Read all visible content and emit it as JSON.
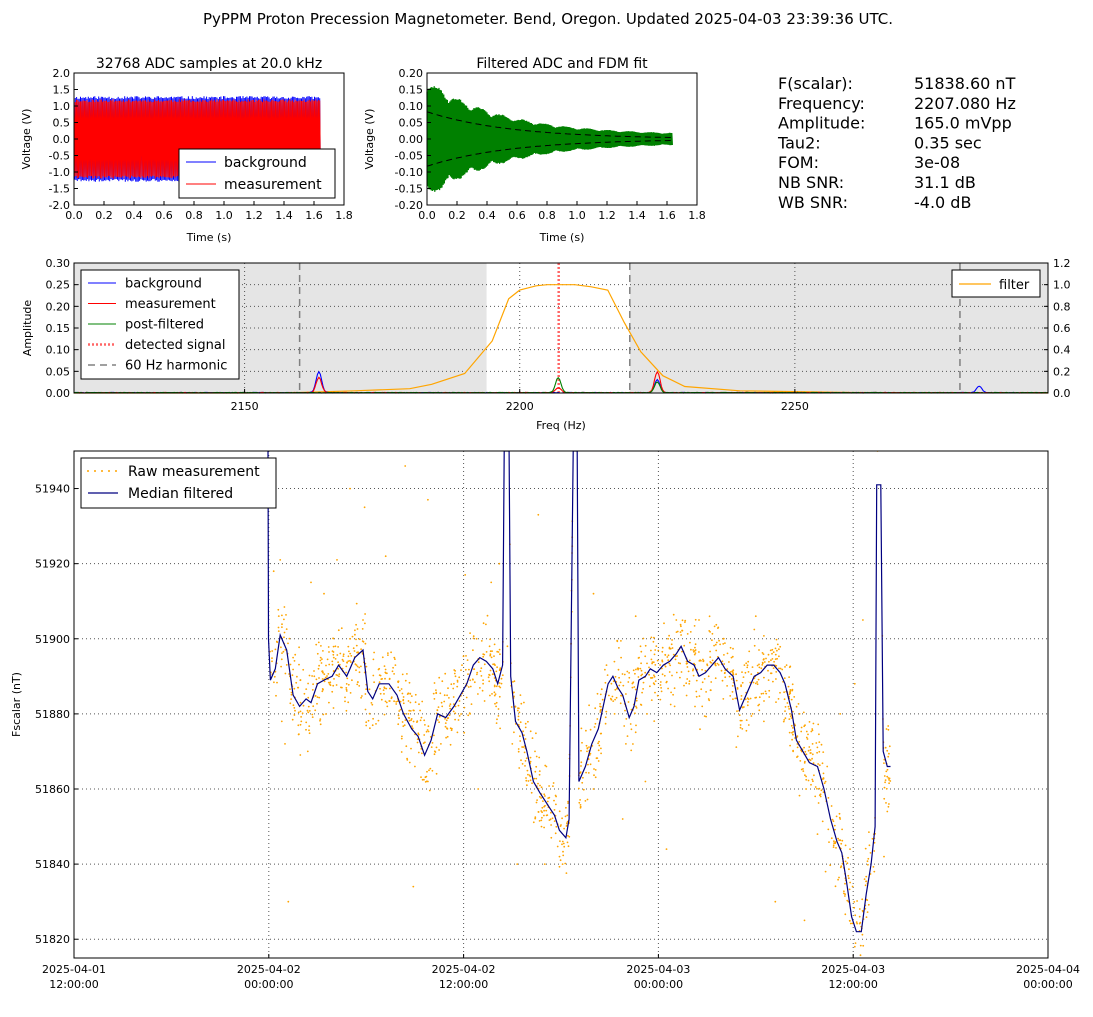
{
  "page_title": "PyPPM Proton Precession Magnetometer. Bend, Oregon. Updated 2025-04-03 23:39:36 UTC.",
  "info_panel": [
    {
      "label": "F(scalar):",
      "value": "51838.60 nT"
    },
    {
      "label": "Frequency:",
      "value": "2207.080 Hz"
    },
    {
      "label": "Amplitude:",
      "value": "165.0 mVpp"
    },
    {
      "label": "Tau2:",
      "value": "0.35 sec"
    },
    {
      "label": "FOM:",
      "value": "3e-08"
    },
    {
      "label": "NB SNR:",
      "value": "31.1 dB"
    },
    {
      "label": "WB SNR:",
      "value": "-4.0 dB"
    }
  ],
  "colors": {
    "background": "#0000ff",
    "measurement": "#ff0000",
    "post_filtered": "#008000",
    "detected": "#ff6666",
    "harmonic": "#808080",
    "filter": "#ffa500",
    "raw": "#ffa500",
    "median": "#000080",
    "grey_band": "#e5e5e5"
  },
  "chart_data": [
    {
      "type": "line",
      "title": "32768 ADC samples at 20.0 kHz",
      "xlabel": "Time (s)",
      "ylabel": "Voltage (V)",
      "xlim": [
        0.0,
        1.8
      ],
      "ylim": [
        -2.0,
        2.0
      ],
      "x_ticks": [
        "0.0",
        "0.2",
        "0.4",
        "0.6",
        "0.8",
        "1.0",
        "1.2",
        "1.4",
        "1.6",
        "1.8"
      ],
      "y_ticks": [
        "2.0",
        "1.5",
        "1.0",
        "0.5",
        "0.0",
        "-0.5",
        "-1.0",
        "-1.5",
        "-2.0"
      ],
      "sample_duration": 1.64,
      "series": [
        {
          "name": "background",
          "amplitude": 1.3
        },
        {
          "name": "measurement",
          "amplitude": 1.2
        }
      ],
      "legend": "lower-right"
    },
    {
      "type": "line",
      "title": "Filtered ADC and FDM fit",
      "xlabel": "Time (s)",
      "ylabel": "Voltage (V)",
      "xlim": [
        0.0,
        1.8
      ],
      "ylim": [
        -0.2,
        0.2
      ],
      "x_ticks": [
        "0.0",
        "0.2",
        "0.4",
        "0.6",
        "0.8",
        "1.0",
        "1.2",
        "1.4",
        "1.6",
        "1.8"
      ],
      "y_ticks": [
        "0.20",
        "0.15",
        "0.10",
        "0.05",
        "0.00",
        "-0.05",
        "-0.10",
        "-0.15",
        "-0.20"
      ],
      "sample_duration": 1.64,
      "fit_amplitude": 0.0825,
      "tau2": 0.35
    },
    {
      "type": "line",
      "xlabel": "Freq (Hz)",
      "ylabel": "Amplitude",
      "xlim": [
        2119,
        2296
      ],
      "ylim": [
        0.0,
        0.3
      ],
      "y2lim": [
        0.0,
        1.2
      ],
      "x_ticks": [
        "2150",
        "2200",
        "2250"
      ],
      "y_ticks": [
        "0.30",
        "0.25",
        "0.20",
        "0.15",
        "0.10",
        "0.05",
        "0.00"
      ],
      "y2_ticks": [
        "1.2",
        "1.0",
        "0.8",
        "0.6",
        "0.4",
        "0.2",
        "0.0"
      ],
      "passband": [
        2194,
        2220
      ],
      "harmonics_60hz": [
        2160,
        2220,
        2280
      ],
      "detected_signal": 2207.08,
      "legend_left": [
        "background",
        "measurement",
        "post-filtered",
        "detected signal",
        "60 Hz harmonic"
      ],
      "legend_right": [
        "filter"
      ],
      "filter_curve": [
        [
          2119,
          0
        ],
        [
          2150,
          0
        ],
        [
          2160,
          0.005
        ],
        [
          2170,
          0.02
        ],
        [
          2180,
          0.04
        ],
        [
          2184,
          0.08
        ],
        [
          2190,
          0.18
        ],
        [
          2195,
          0.48
        ],
        [
          2198,
          0.87
        ],
        [
          2200,
          0.95
        ],
        [
          2203,
          0.99
        ],
        [
          2205,
          1.0
        ],
        [
          2210,
          1.0
        ],
        [
          2213,
          0.98
        ],
        [
          2216,
          0.95
        ],
        [
          2219,
          0.65
        ],
        [
          2222,
          0.38
        ],
        [
          2226,
          0.16
        ],
        [
          2230,
          0.06
        ],
        [
          2240,
          0.02
        ],
        [
          2260,
          0.005
        ],
        [
          2296,
          0
        ]
      ],
      "background_peaks": [
        [
          2163.5,
          0.048
        ],
        [
          2225,
          0.03
        ],
        [
          2283.5,
          0.015
        ]
      ],
      "measurement_peaks": [
        [
          2163.5,
          0.035
        ],
        [
          2225,
          0.048
        ],
        [
          2207,
          0.012
        ]
      ],
      "postfiltered_peaks": [
        [
          2207,
          0.035
        ],
        [
          2225,
          0.025
        ]
      ]
    },
    {
      "type": "scatter",
      "xlabel": "",
      "ylabel": "Fscalar (nT)",
      "xlim": [
        0,
        60
      ],
      "ylim": [
        51815,
        51950
      ],
      "x_ticks": [
        {
          "x": 0,
          "l1": "2025-04-01",
          "l2": "12:00:00"
        },
        {
          "x": 12,
          "l1": "2025-04-02",
          "l2": "00:00:00"
        },
        {
          "x": 24,
          "l1": "2025-04-02",
          "l2": "12:00:00"
        },
        {
          "x": 36,
          "l1": "2025-04-03",
          "l2": "00:00:00"
        },
        {
          "x": 48,
          "l1": "2025-04-03",
          "l2": "12:00:00"
        },
        {
          "x": 60,
          "l1": "2025-04-04",
          "l2": "00:00:00"
        }
      ],
      "y_ticks": [
        51820,
        51840,
        51860,
        51880,
        51900,
        51920,
        51940
      ],
      "series": [
        {
          "name": "Raw measurement",
          "style": "points"
        },
        {
          "name": "Median filtered",
          "style": "line"
        }
      ],
      "median_filtered": [
        [
          11.95,
          51950
        ],
        [
          11.98,
          51900
        ],
        [
          12.1,
          51889
        ],
        [
          12.4,
          51892
        ],
        [
          12.7,
          51901
        ],
        [
          13.1,
          51897
        ],
        [
          13.5,
          51885
        ],
        [
          13.9,
          51882
        ],
        [
          14.3,
          51884
        ],
        [
          14.6,
          51883
        ],
        [
          15.0,
          51888
        ],
        [
          15.4,
          51889
        ],
        [
          15.9,
          51890
        ],
        [
          16.3,
          51893
        ],
        [
          16.8,
          51890
        ],
        [
          17.3,
          51895
        ],
        [
          17.8,
          51897
        ],
        [
          18.1,
          51886
        ],
        [
          18.4,
          51884
        ],
        [
          18.8,
          51888
        ],
        [
          19.4,
          51888
        ],
        [
          19.9,
          51885
        ],
        [
          20.3,
          51880
        ],
        [
          20.8,
          51876
        ],
        [
          21.2,
          51874
        ],
        [
          21.6,
          51869
        ],
        [
          22.0,
          51873
        ],
        [
          22.4,
          51880
        ],
        [
          22.9,
          51879
        ],
        [
          23.4,
          51882
        ],
        [
          23.8,
          51885
        ],
        [
          24.2,
          51888
        ],
        [
          24.6,
          51893
        ],
        [
          25.0,
          51895
        ],
        [
          25.4,
          51894
        ],
        [
          25.8,
          51892
        ],
        [
          26.1,
          51888
        ],
        [
          26.4,
          51893
        ],
        [
          26.5,
          51950
        ],
        [
          26.8,
          51950
        ],
        [
          26.9,
          51890
        ],
        [
          27.2,
          51878
        ],
        [
          27.6,
          51875
        ],
        [
          27.9,
          51870
        ],
        [
          28.3,
          51862
        ],
        [
          28.7,
          51859
        ],
        [
          29.0,
          51857
        ],
        [
          29.3,
          51855
        ],
        [
          29.6,
          51853
        ],
        [
          29.9,
          51849
        ],
        [
          30.3,
          51847
        ],
        [
          30.5,
          51852
        ],
        [
          30.75,
          51950
        ],
        [
          31.0,
          51950
        ],
        [
          31.1,
          51862
        ],
        [
          31.5,
          51866
        ],
        [
          31.9,
          51872
        ],
        [
          32.3,
          51876
        ],
        [
          32.6,
          51882
        ],
        [
          32.9,
          51888
        ],
        [
          33.2,
          51890
        ],
        [
          33.5,
          51887
        ],
        [
          33.8,
          51885
        ],
        [
          34.2,
          51879
        ],
        [
          34.5,
          51882
        ],
        [
          34.8,
          51889
        ],
        [
          35.2,
          51890
        ],
        [
          35.5,
          51892
        ],
        [
          35.9,
          51891
        ],
        [
          36.3,
          51893
        ],
        [
          36.7,
          51894
        ],
        [
          37.1,
          51896
        ],
        [
          37.4,
          51898
        ],
        [
          37.8,
          51894
        ],
        [
          38.2,
          51893
        ],
        [
          38.5,
          51890
        ],
        [
          38.9,
          51891
        ],
        [
          39.3,
          51893
        ],
        [
          39.7,
          51895
        ],
        [
          40.1,
          51892
        ],
        [
          40.6,
          51890
        ],
        [
          41.0,
          51881
        ],
        [
          41.3,
          51884
        ],
        [
          41.6,
          51887
        ],
        [
          41.9,
          51890
        ],
        [
          42.3,
          51891
        ],
        [
          42.7,
          51893
        ],
        [
          43.1,
          51893
        ],
        [
          43.5,
          51891
        ],
        [
          43.8,
          51888
        ],
        [
          44.2,
          51881
        ],
        [
          44.5,
          51873
        ],
        [
          44.9,
          51870
        ],
        [
          45.3,
          51867
        ],
        [
          45.8,
          51866
        ],
        [
          46.2,
          51860
        ],
        [
          46.6,
          51852
        ],
        [
          47.0,
          51846
        ],
        [
          47.3,
          51843
        ],
        [
          47.6,
          51835
        ],
        [
          47.9,
          51826
        ],
        [
          48.2,
          51822
        ],
        [
          48.5,
          51822
        ],
        [
          48.8,
          51832
        ],
        [
          49.1,
          51840
        ],
        [
          49.35,
          51850
        ],
        [
          49.45,
          51941
        ],
        [
          49.7,
          51941
        ],
        [
          49.85,
          51870
        ],
        [
          50.1,
          51866
        ],
        [
          50.3,
          51866
        ]
      ],
      "raw_samples": [
        [
          12.2,
          51894
        ],
        [
          12.6,
          51903
        ],
        [
          12.8,
          51878
        ],
        [
          13.0,
          51872
        ],
        [
          13.3,
          51890
        ],
        [
          13.5,
          51895
        ],
        [
          14.0,
          51878
        ],
        [
          14.4,
          51870
        ],
        [
          14.8,
          51890
        ],
        [
          15.2,
          51895
        ],
        [
          15.7,
          51883
        ],
        [
          16.1,
          51898
        ],
        [
          16.5,
          51887
        ],
        [
          17.0,
          51900
        ],
        [
          17.4,
          51893
        ],
        [
          17.8,
          51905
        ],
        [
          18.4,
          51877
        ],
        [
          18.8,
          51892
        ],
        [
          19.3,
          51882
        ],
        [
          19.8,
          51893
        ],
        [
          20.2,
          51874
        ],
        [
          20.6,
          51880
        ],
        [
          21.0,
          51866
        ],
        [
          21.4,
          51879
        ],
        [
          21.8,
          51862
        ],
        [
          22.2,
          51884
        ],
        [
          22.6,
          51872
        ],
        [
          23.0,
          51876
        ],
        [
          23.4,
          51888
        ],
        [
          23.9,
          51893
        ],
        [
          24.4,
          51880
        ],
        [
          24.8,
          51900
        ],
        [
          25.2,
          51889
        ],
        [
          25.6,
          51898
        ],
        [
          26.0,
          51882
        ],
        [
          26.7,
          51898
        ],
        [
          27.0,
          51872
        ],
        [
          27.5,
          51885
        ],
        [
          27.9,
          51861
        ],
        [
          28.4,
          51870
        ],
        [
          28.8,
          51850
        ],
        [
          29.1,
          51866
        ],
        [
          29.4,
          51847
        ],
        [
          29.7,
          51858
        ],
        [
          30.1,
          51840
        ],
        [
          30.3,
          51855
        ],
        [
          31.2,
          51855
        ],
        [
          31.6,
          51870
        ],
        [
          32.0,
          51860
        ],
        [
          32.4,
          51882
        ],
        [
          32.8,
          51893
        ],
        [
          33.3,
          51880
        ],
        [
          33.7,
          51895
        ],
        [
          34.0,
          51872
        ],
        [
          34.4,
          51887
        ],
        [
          34.9,
          51898
        ],
        [
          35.3,
          51880
        ],
        [
          35.8,
          51897
        ],
        [
          36.2,
          51886
        ],
        [
          36.6,
          51900
        ],
        [
          37.0,
          51882
        ],
        [
          37.4,
          51901
        ],
        [
          37.9,
          51888
        ],
        [
          38.3,
          51897
        ],
        [
          38.7,
          51882
        ],
        [
          39.1,
          51890
        ],
        [
          39.6,
          51899
        ],
        [
          40.0,
          51884
        ],
        [
          40.5,
          51895
        ],
        [
          40.9,
          51874
        ],
        [
          41.3,
          51893
        ],
        [
          41.8,
          51880
        ],
        [
          42.2,
          51897
        ],
        [
          42.6,
          51886
        ],
        [
          43.0,
          51896
        ],
        [
          43.4,
          51884
        ],
        [
          43.9,
          51893
        ],
        [
          44.3,
          51870
        ],
        [
          44.7,
          51880
        ],
        [
          45.1,
          51860
        ],
        [
          45.5,
          51872
        ],
        [
          46.0,
          51858
        ],
        [
          46.4,
          51866
        ],
        [
          46.8,
          51845
        ],
        [
          47.2,
          51852
        ],
        [
          47.5,
          51832
        ],
        [
          47.8,
          51844
        ],
        [
          48.1,
          51818
        ],
        [
          48.4,
          51826
        ],
        [
          48.7,
          51836
        ],
        [
          49.0,
          51845
        ],
        [
          49.3,
          51838
        ],
        [
          50.0,
          51871
        ],
        [
          50.2,
          51856
        ]
      ],
      "raw_outliers": [
        [
          12.3,
          51918
        ],
        [
          12.7,
          51921
        ],
        [
          13.2,
          51830
        ],
        [
          14.6,
          51915
        ],
        [
          15.4,
          51912
        ],
        [
          16.2,
          51921
        ],
        [
          17.0,
          51940
        ],
        [
          17.9,
          51935
        ],
        [
          19.2,
          51922
        ],
        [
          20.4,
          51946
        ],
        [
          20.9,
          51834
        ],
        [
          21.8,
          51937
        ],
        [
          23.5,
          51890
        ],
        [
          24.1,
          51917
        ],
        [
          24.9,
          51860
        ],
        [
          25.7,
          51915
        ],
        [
          26.2,
          51920
        ],
        [
          27.3,
          51840
        ],
        [
          28.6,
          51933
        ],
        [
          29.0,
          51840
        ],
        [
          32.0,
          51912
        ],
        [
          33.8,
          51852
        ],
        [
          34.6,
          51906
        ],
        [
          35.2,
          51862
        ],
        [
          36.5,
          51844
        ],
        [
          37.1,
          51905
        ],
        [
          38.5,
          51905
        ],
        [
          40.0,
          51900
        ],
        [
          42.0,
          51906
        ],
        [
          43.2,
          51830
        ],
        [
          44.1,
          51880
        ],
        [
          45.0,
          51825
        ],
        [
          45.8,
          51848
        ],
        [
          46.3,
          51838
        ],
        [
          47.2,
          51880
        ],
        [
          48.1,
          51888
        ],
        [
          48.6,
          51905
        ],
        [
          49.5,
          51950
        ],
        [
          49.9,
          51842
        ],
        [
          50.1,
          51854
        ]
      ]
    }
  ]
}
